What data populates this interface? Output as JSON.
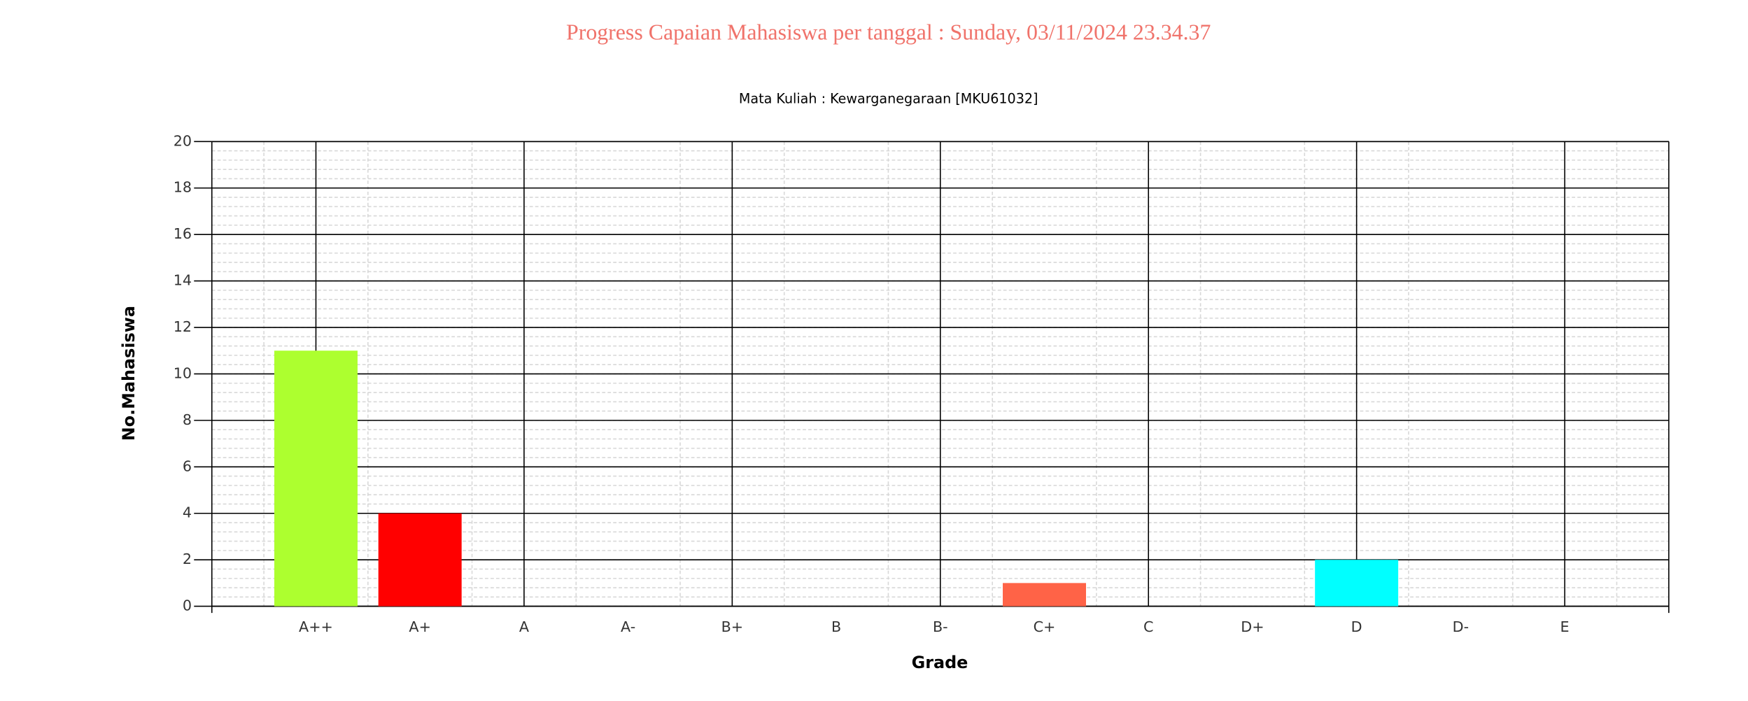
{
  "chart_data": {
    "type": "bar",
    "title": "Progress Capaian Mahasiswa per tanggal : Sunday, 03/11/2024 23.34.37",
    "subtitle": "Mata Kuliah : Kewarganegaraan [MKU61032]",
    "x_label": "Grade",
    "y_label": "No.Mahasiswa",
    "categories": [
      "A++",
      "A+",
      "A",
      "A-",
      "B+",
      "B",
      "B-",
      "C+",
      "C",
      "D+",
      "D",
      "D-",
      "E"
    ],
    "values": [
      11,
      4,
      0,
      0,
      0,
      0,
      0,
      1,
      0,
      0,
      2,
      0,
      0
    ],
    "colors": [
      "#adff2f",
      "#ff0000",
      null,
      null,
      null,
      null,
      null,
      "#ff6347",
      null,
      null,
      "#00ffff",
      null,
      null
    ],
    "ylim": [
      0,
      20
    ],
    "yticks": [
      0,
      2,
      4,
      6,
      8,
      10,
      12,
      14,
      16,
      18,
      20
    ],
    "grid": true
  }
}
